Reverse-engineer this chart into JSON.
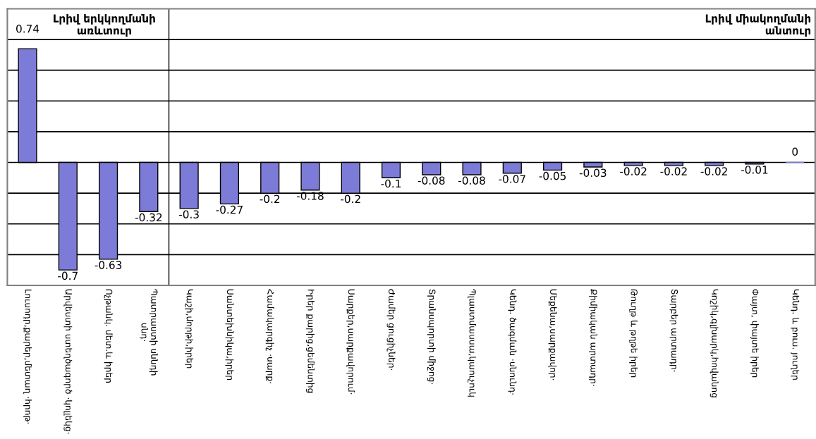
{
  "chart_data": {
    "type": "bar",
    "categories": [
      "Լուսոդր,քարեր,մետաղ ·հրոթ·",
      "Արվեստի ստեղծագործ ·կոլլեկց·",
      "Ոչթանկ. մետ.և իրեր",
      "Պատրաստի սննդի\nսնդ·",
      "Կաշի,մորթի,իրեր",
      "Սանտեխնիկա,իրեր",
      "Համակարգիչ ·սարք·",
      "Իրեր քարից,ցեմենտից",
      "Սարքեր,սարքավորում·",
      "Ժամեր ցուցիչներ·",
      "Տրանսպորտի միջոց·",
      "Պլաստմասսա,կաուչուկ",
      "Կենդ. ծագման ·սնունդ·",
      "Մեքենա,սարքավոր·",
      "Քիմիական արտադր·",
      "Թուղթ և թղթե իրեր",
      "Տարբեր արտադր·",
      "Կոշիկ,գլխարկ,հովանոց",
      "Փայտ, փայտե իրեր",
      "Կենդ. և բուս. յուղեր"
    ],
    "values": [
      0.74,
      -0.7,
      -0.63,
      -0.32,
      -0.3,
      -0.27,
      -0.2,
      -0.18,
      -0.2,
      -0.1,
      -0.08,
      -0.08,
      -0.07,
      -0.05,
      -0.03,
      -0.02,
      -0.02,
      -0.02,
      -0.01,
      0
    ],
    "color": "#7c7cd8",
    "data_labels": true,
    "ylim": [
      -0.8,
      1.0
    ],
    "yticks": [
      {
        "value": -0.6,
        "label": null
      },
      {
        "value": -0.4,
        "label": null
      },
      {
        "value": -0.2,
        "label": null
      },
      {
        "value": 0,
        "label": null
      },
      {
        "value": 0.2,
        "label": null
      },
      {
        "value": 0.4,
        "label": null
      },
      {
        "value": 0.6,
        "label": null
      },
      {
        "value": 0.8,
        "label": null
      }
    ],
    "tick_labels": "x",
    "grid": "y",
    "annotations": [
      "Լրիվ երկկողմանի\nառևտուր",
      "Լրիվ միակողմանի\nանտուր"
    ]
  }
}
